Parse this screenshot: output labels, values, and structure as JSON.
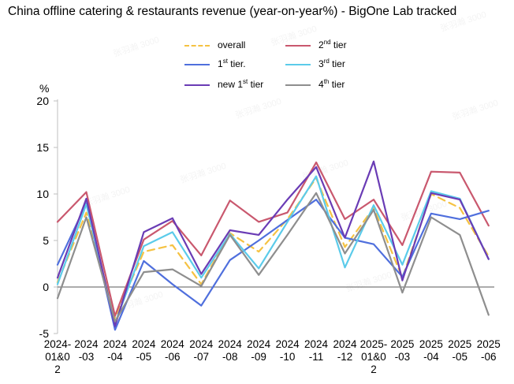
{
  "chart_data": {
    "type": "line",
    "title": "China offline catering & restaurants revenue (year-on-year%) - BigOne Lab tracked",
    "ylabel": "%",
    "ylim": [
      -5,
      20
    ],
    "yticks": [
      -5,
      0,
      5,
      10,
      15,
      20
    ],
    "ytick_labels": [
      "-5",
      "0",
      "5",
      "10",
      "15",
      "20"
    ],
    "categories": [
      "2024-01&02",
      "2024-03",
      "2024-04",
      "2024-05",
      "2024-06",
      "2024-07",
      "2024-08",
      "2024-09",
      "2024-10",
      "2024-11",
      "2024-12",
      "2025-01&02",
      "2025-03",
      "2025-04",
      "2025-05",
      "2025-06"
    ],
    "category_labels": [
      [
        "2024-",
        "01&0",
        "2"
      ],
      [
        "2024",
        "-03"
      ],
      [
        "2024",
        "-04"
      ],
      [
        "2024",
        "-05"
      ],
      [
        "2024",
        "-06"
      ],
      [
        "2024",
        "-07"
      ],
      [
        "2024",
        "-08"
      ],
      [
        "2024",
        "-09"
      ],
      [
        "2024",
        "-10"
      ],
      [
        "2024",
        "-11"
      ],
      [
        "2024",
        "-12"
      ],
      [
        "2025-",
        "01&0",
        "2"
      ],
      [
        "2025",
        "-03"
      ],
      [
        "2025",
        "-04"
      ],
      [
        "2025",
        "-05"
      ],
      [
        "2025",
        "-06"
      ]
    ],
    "legend_placement": "top",
    "grid": false,
    "series": [
      {
        "name": "overall",
        "label_main": "overall",
        "label_sup": "",
        "label_tail": "",
        "color": "#F5C242",
        "dashed": true,
        "values": [
          0.5,
          8.0,
          -3.3,
          3.8,
          4.5,
          0.3,
          5.8,
          3.8,
          7.3,
          11.7,
          4.3,
          8.5,
          1.0,
          10.0,
          8.5,
          3.3
        ]
      },
      {
        "name": "2nd tier",
        "label_main": "2",
        "label_sup": "nd",
        "label_tail": " tier",
        "color": "#C9586E",
        "dashed": false,
        "values": [
          7.0,
          10.2,
          -3.1,
          5.1,
          7.1,
          3.4,
          9.3,
          7.0,
          8.0,
          13.4,
          7.3,
          9.4,
          4.5,
          12.4,
          12.3,
          6.6
        ]
      },
      {
        "name": "1st tier.",
        "label_main": "1",
        "label_sup": "st",
        "label_tail": " tier.",
        "color": "#4F6FDD",
        "dashed": false,
        "values": [
          2.4,
          9.0,
          -4.6,
          2.8,
          0.3,
          -2.0,
          2.9,
          5.0,
          7.2,
          9.4,
          5.3,
          4.6,
          1.1,
          7.9,
          7.3,
          8.2
        ]
      },
      {
        "name": "3rd tier",
        "label_main": "3",
        "label_sup": "rd",
        "label_tail": " tier",
        "color": "#5BCBEA",
        "dashed": false,
        "values": [
          0.3,
          8.9,
          -3.9,
          4.4,
          5.9,
          1.0,
          5.7,
          2.0,
          7.0,
          11.9,
          2.1,
          8.8,
          2.4,
          10.3,
          9.5,
          3.0
        ]
      },
      {
        "name": "new 1st tier",
        "label_main": "new 1",
        "label_sup": "st",
        "label_tail": " tier",
        "color": "#6A3CB5",
        "dashed": false,
        "values": [
          1.0,
          9.5,
          -4.2,
          5.9,
          7.4,
          1.4,
          6.1,
          5.6,
          9.4,
          12.9,
          5.3,
          13.5,
          0.7,
          10.1,
          9.4,
          3.0
        ]
      },
      {
        "name": "4th tier",
        "label_main": "4",
        "label_sup": "th",
        "label_tail": " tier",
        "color": "#8E8E8E",
        "dashed": false,
        "values": [
          -1.2,
          7.5,
          -3.7,
          1.6,
          1.9,
          0.1,
          5.6,
          1.3,
          5.6,
          10.1,
          3.6,
          8.3,
          -0.6,
          7.5,
          5.6,
          -3.0
        ]
      }
    ]
  },
  "watermark": {
    "text": "张羽瀚 3000"
  }
}
